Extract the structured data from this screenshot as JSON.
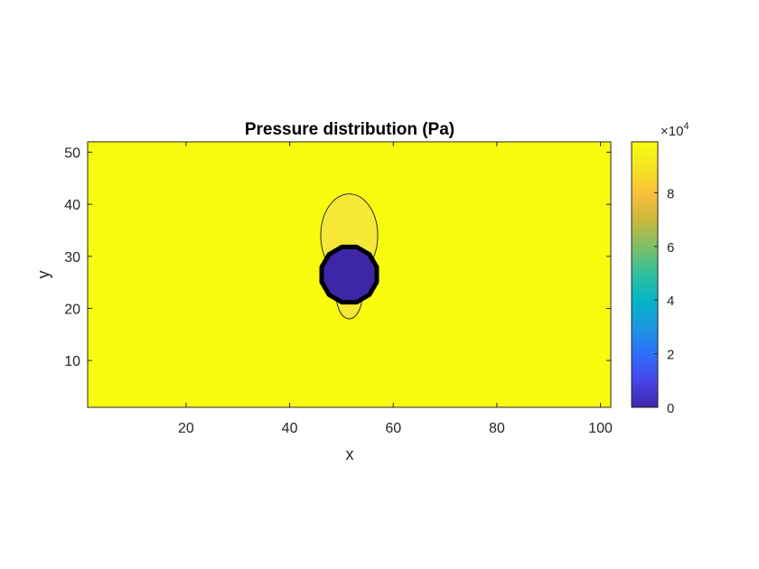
{
  "chart_data": {
    "type": "heatmap",
    "title": "Pressure distribution (Pa)",
    "xlabel": "x",
    "ylabel": "y",
    "xlim": [
      1,
      102
    ],
    "ylim": [
      1,
      52
    ],
    "x_ticks": [
      20,
      40,
      60,
      80,
      100
    ],
    "y_ticks": [
      10,
      20,
      30,
      40,
      50
    ],
    "field": {
      "background_value": 100000,
      "obstacle": {
        "center": [
          51.5,
          26.5
        ],
        "radius": 5.5,
        "value": 0
      }
    },
    "contours": [
      {
        "level": 99000,
        "x_range": [
          46,
          57
        ],
        "y_range": [
          26,
          42
        ]
      },
      {
        "level": 99500,
        "x_range": [
          48,
          55
        ],
        "y_range": [
          26,
          32
        ]
      },
      {
        "level": 99000,
        "x_range": [
          49,
          54
        ],
        "y_range": [
          18,
          27
        ]
      }
    ],
    "colorbar": {
      "colormap": "parula",
      "exponent_label": "×10",
      "exponent": "4",
      "ticks": [
        0,
        2,
        4,
        6,
        8
      ],
      "tick_labels": [
        "0",
        "2",
        "4",
        "6",
        "8"
      ],
      "scale": 10000,
      "range": [
        0,
        99000
      ],
      "colors": [
        "#3e26a8",
        "#4746eb",
        "#2f6ffb",
        "#1b97e0",
        "#05b4c6",
        "#2ec09e",
        "#7abf6a",
        "#c6b93d",
        "#f9bd3a",
        "#f5e423",
        "#f9fb0e"
      ]
    }
  }
}
